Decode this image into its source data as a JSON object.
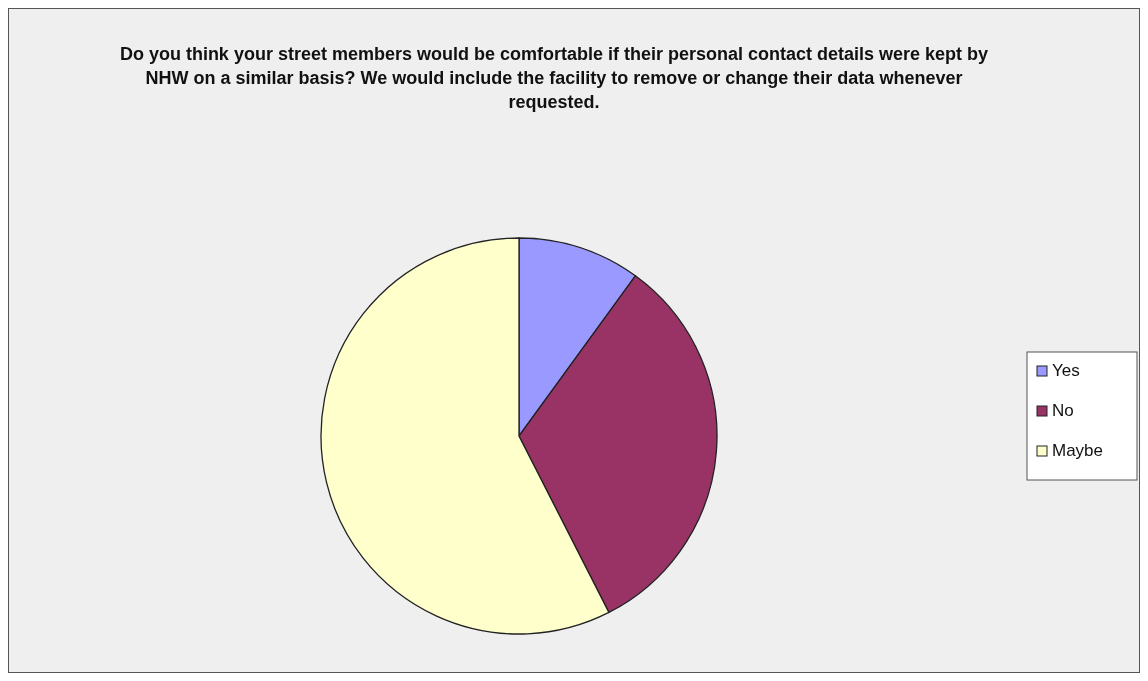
{
  "chart_data": {
    "type": "pie",
    "title": "Do you think your street members would be comfortable if their personal contact details were kept by NHW on a similar basis?  We would include the facility to remove or change their data whenever requested.",
    "categories": [
      "Yes",
      "No",
      "Maybe"
    ],
    "values": [
      10,
      32.5,
      57.5
    ],
    "colors": [
      "#9999ff",
      "#993366",
      "#ffffcc"
    ],
    "legend": "right"
  }
}
